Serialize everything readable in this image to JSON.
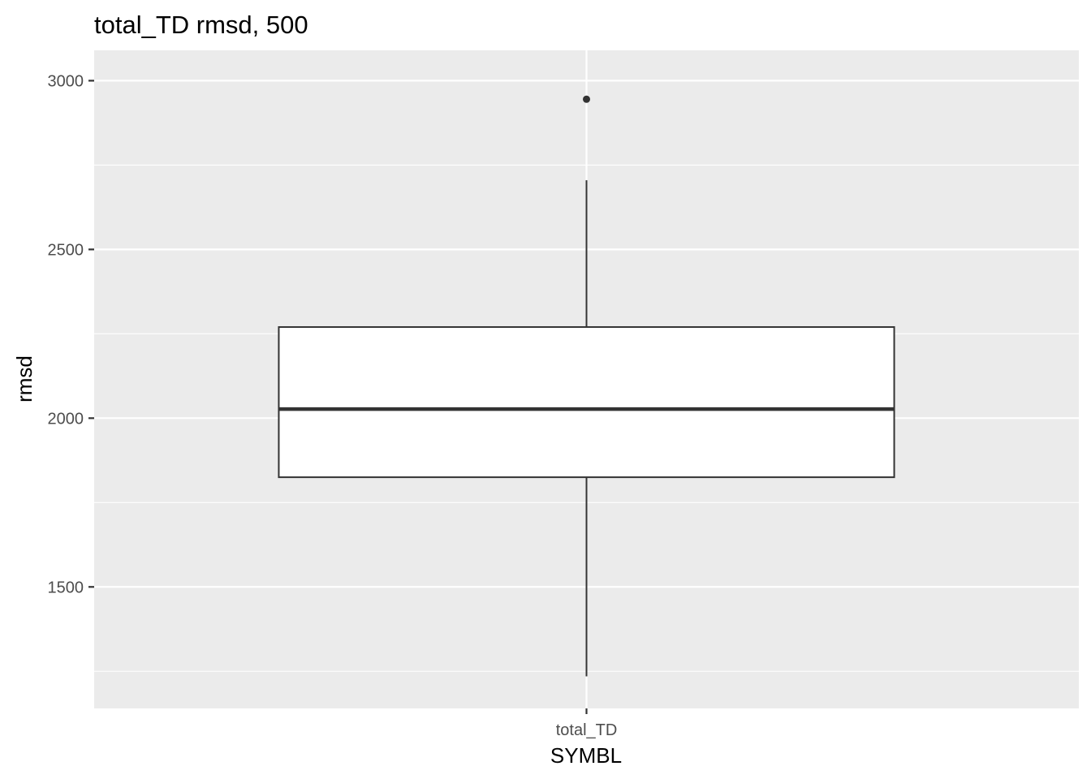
{
  "chart_data": {
    "type": "boxplot",
    "title": "total_TD rmsd, 500",
    "xlabel": "SYMBL",
    "ylabel": "rmsd",
    "categories": [
      "total_TD"
    ],
    "boxes": [
      {
        "category": "total_TD",
        "whisker_low": 1235,
        "q1": 1825,
        "median": 2027,
        "q3": 2270,
        "whisker_high": 2705,
        "outliers": [
          2945
        ]
      }
    ],
    "ylim": [
      1140,
      3090
    ],
    "y_ticks": [
      1500,
      2000,
      2500,
      3000
    ],
    "y_tick_labels": [
      "1500",
      "2000",
      "2500",
      "3000"
    ],
    "grid": true,
    "colors": {
      "panel_background": "#ebebeb",
      "grid": "#ffffff",
      "box_fill": "#ffffff",
      "box_stroke": "#333333",
      "tick_label": "#4d4d4d"
    }
  }
}
